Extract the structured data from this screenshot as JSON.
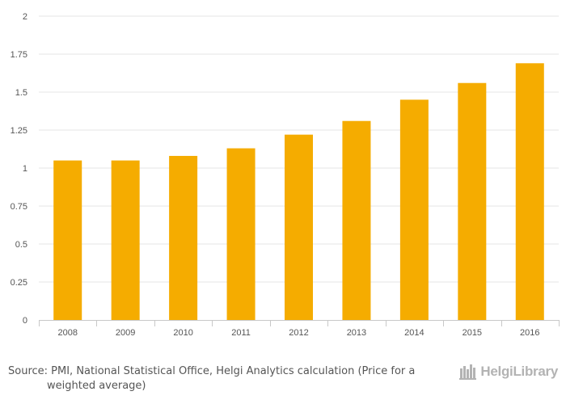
{
  "chart_data": {
    "type": "bar",
    "categories": [
      "2008",
      "2009",
      "2010",
      "2011",
      "2012",
      "2013",
      "2014",
      "2015",
      "2016"
    ],
    "values": [
      1.05,
      1.05,
      1.08,
      1.13,
      1.22,
      1.31,
      1.45,
      1.56,
      1.69
    ],
    "ylim": [
      0,
      2
    ],
    "yticks": [
      "0",
      "0.25",
      "0.5",
      "0.75",
      "1",
      "1.25",
      "1.5",
      "1.75",
      "2"
    ],
    "bar_color": "#f5ac00",
    "grid": true
  },
  "footer": {
    "source_line1": "Source: PMI, National Statistical Office, Helgi Analytics calculation (Price for a",
    "source_line2": "weighted average)",
    "brand": "HelgiLibrary"
  }
}
